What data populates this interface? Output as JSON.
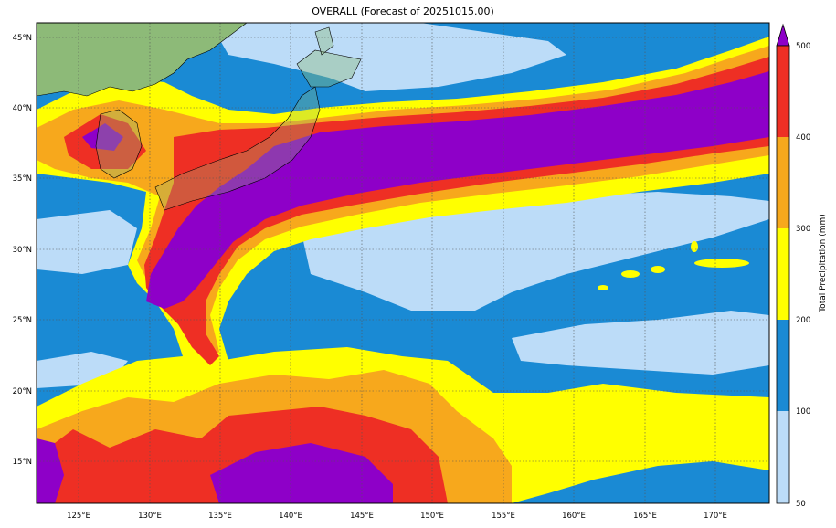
{
  "title": "OVERALL (Forecast of 20251015.00)",
  "lon_ticks": [
    "125°E",
    "130°E",
    "135°E",
    "140°E",
    "145°E",
    "150°E",
    "155°E",
    "160°E",
    "165°E",
    "170°E"
  ],
  "lat_ticks": [
    "45°N",
    "40°N",
    "35°N",
    "30°N",
    "25°N",
    "20°N",
    "15°N"
  ],
  "colorbar": {
    "label": "Total Precipitation (mm)",
    "ticks": [
      "50",
      "100",
      "200",
      "300",
      "400",
      "500"
    ],
    "colors": [
      "#bcdcf8",
      "#1a8ad4",
      "#ffff00",
      "#f7a81c",
      "#ee2f24",
      "#8e00c8"
    ]
  },
  "colors": {
    "land": "#8dba78",
    "coast": "#000000"
  }
}
